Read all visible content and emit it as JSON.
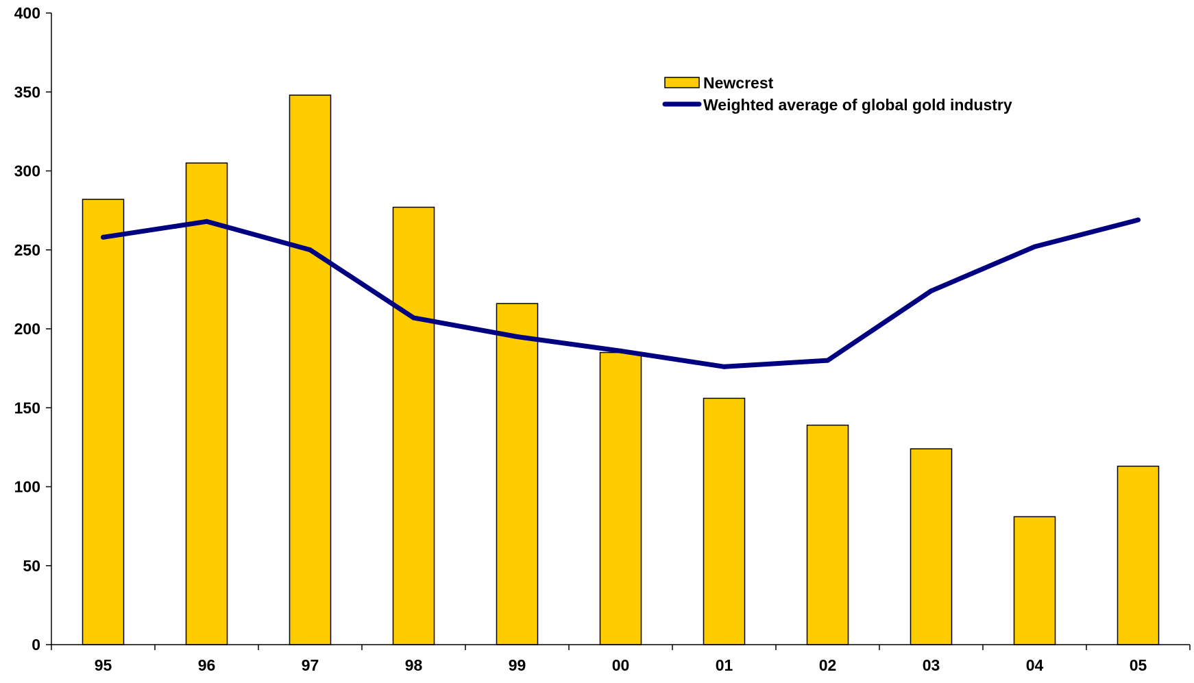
{
  "chart_data": {
    "type": "bar",
    "categories": [
      "95",
      "96",
      "97",
      "98",
      "99",
      "00",
      "01",
      "02",
      "03",
      "04",
      "05"
    ],
    "series": [
      {
        "name": "Newcrest",
        "type": "bar",
        "color": "#FFCC00",
        "values": [
          282,
          305,
          348,
          277,
          216,
          185,
          156,
          139,
          124,
          81,
          113
        ]
      },
      {
        "name": "Weighted average of global gold industry",
        "type": "line",
        "color": "#000080",
        "values": [
          258,
          268,
          250,
          207,
          195,
          186,
          176,
          180,
          224,
          252,
          269
        ]
      }
    ],
    "ylim": [
      0,
      400
    ],
    "yticks": [
      "0",
      "50",
      "100",
      "150",
      "200",
      "250",
      "300",
      "350",
      "400"
    ],
    "title": "",
    "xlabel": "",
    "ylabel": "",
    "grid": false,
    "legend_position": "top-right"
  }
}
